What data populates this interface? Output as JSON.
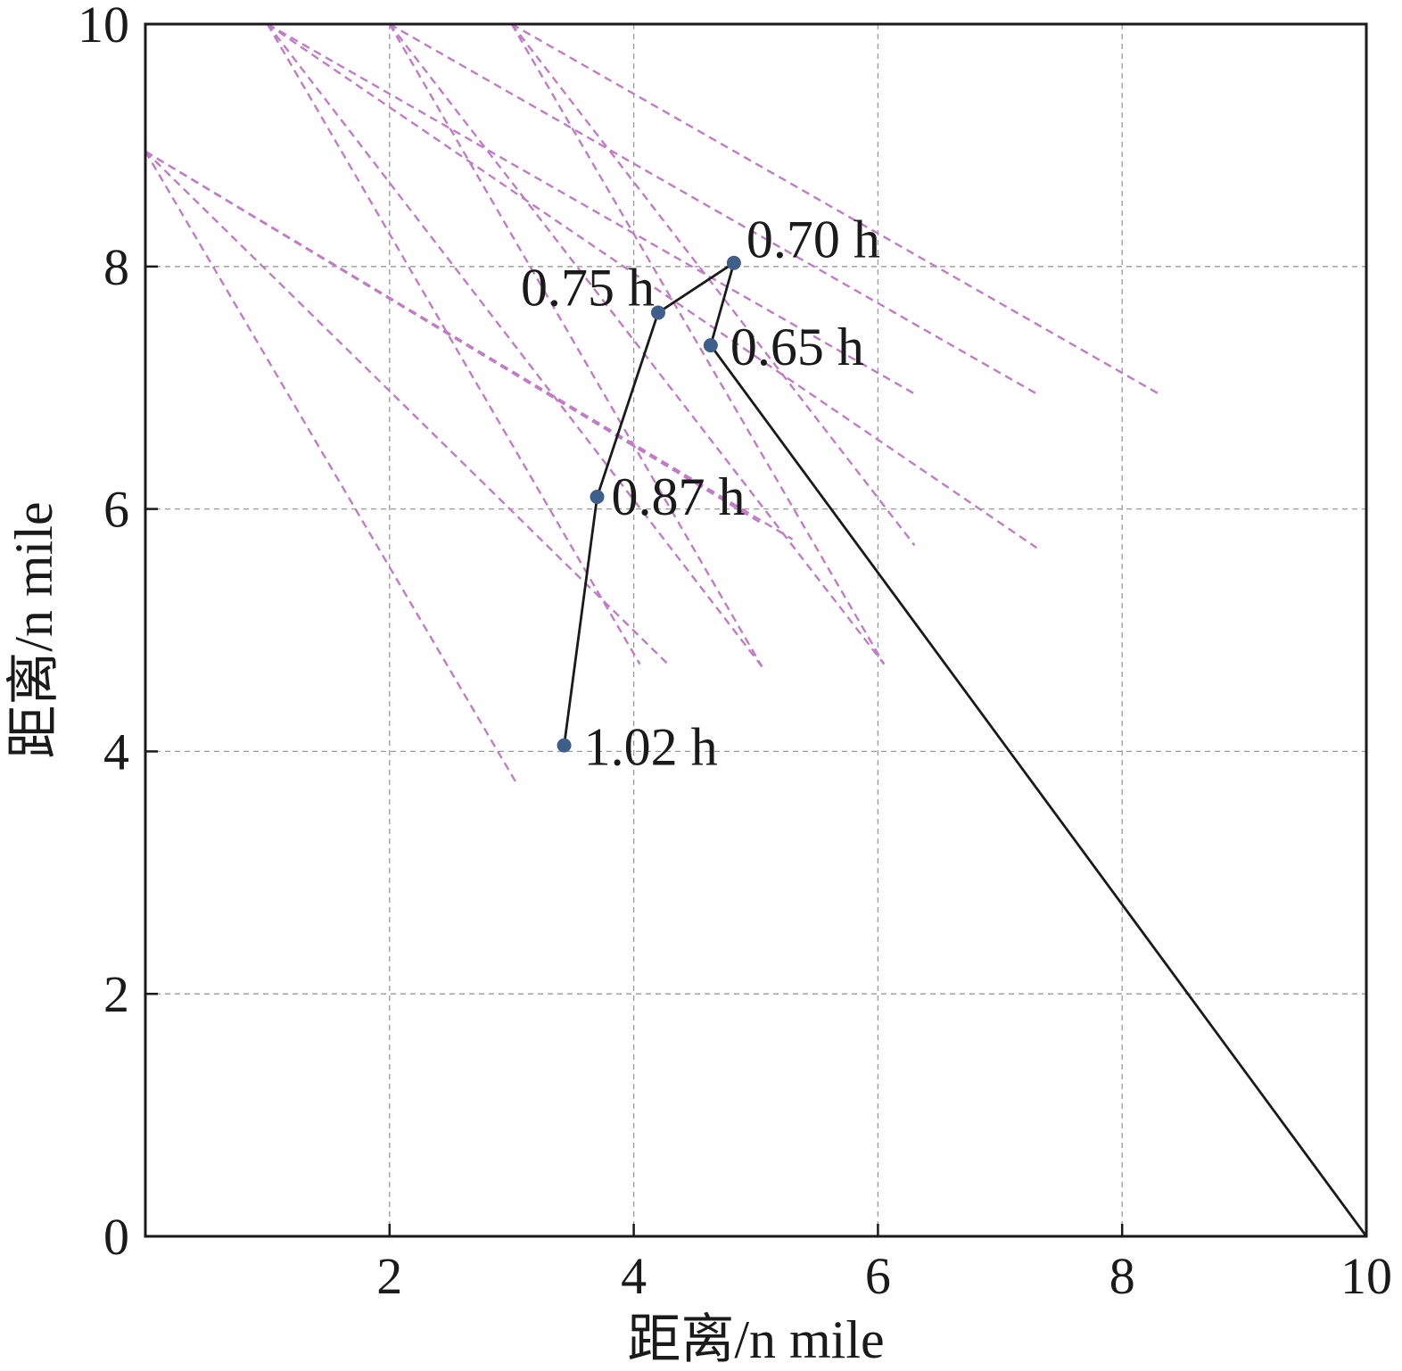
{
  "chart_data": {
    "type": "line",
    "xlabel": "距离/n mile",
    "ylabel": "距离/n mile",
    "xlim": [
      0,
      10
    ],
    "ylim": [
      0,
      10
    ],
    "xticks": [
      2,
      4,
      6,
      8,
      10
    ],
    "xtick_labels": [
      "2",
      "4",
      "6",
      "8",
      "10"
    ],
    "yticks": [
      0,
      2,
      4,
      6,
      8,
      10
    ],
    "ytick_labels": [
      "0",
      "2",
      "4",
      "6",
      "8",
      "10"
    ],
    "grid": true,
    "track": {
      "color": "#1a1a1a",
      "points": [
        {
          "x": 10.0,
          "y": 0.0
        },
        {
          "x": 4.63,
          "y": 7.35
        },
        {
          "x": 4.82,
          "y": 8.03
        },
        {
          "x": 4.2,
          "y": 7.62
        },
        {
          "x": 3.7,
          "y": 6.1
        },
        {
          "x": 3.43,
          "y": 4.05
        }
      ]
    },
    "observations": {
      "marker_color": "#3d5f8a",
      "points": [
        {
          "x": 4.63,
          "y": 7.35,
          "label": "0.65 h"
        },
        {
          "x": 4.82,
          "y": 8.03,
          "label": "0.70 h"
        },
        {
          "x": 4.2,
          "y": 7.62,
          "label": "0.75 h"
        },
        {
          "x": 3.7,
          "y": 6.1,
          "label": "0.87 h"
        },
        {
          "x": 3.43,
          "y": 4.05,
          "label": "1.02 h"
        }
      ]
    },
    "bearing_lines": {
      "color": "#c27bc7",
      "segments": [
        {
          "x1": 0.0,
          "y1": 8.95,
          "x2": 3.05,
          "y2": 3.72
        },
        {
          "x1": 0.0,
          "y1": 8.95,
          "x2": 4.3,
          "y2": 4.7
        },
        {
          "x1": 0.0,
          "y1": 8.95,
          "x2": 5.3,
          "y2": 5.75
        },
        {
          "x1": 1.0,
          "y1": 10.0,
          "x2": 4.05,
          "y2": 4.72
        },
        {
          "x1": 1.0,
          "y1": 10.0,
          "x2": 5.05,
          "y2": 4.7
        },
        {
          "x1": 1.0,
          "y1": 10.0,
          "x2": 6.3,
          "y2": 6.95
        },
        {
          "x1": 2.0,
          "y1": 10.0,
          "x2": 5.05,
          "y2": 4.7
        },
        {
          "x1": 2.0,
          "y1": 10.0,
          "x2": 6.05,
          "y2": 4.72
        },
        {
          "x1": 2.0,
          "y1": 10.0,
          "x2": 7.3,
          "y2": 6.95
        },
        {
          "x1": 3.0,
          "y1": 10.0,
          "x2": 6.05,
          "y2": 4.72
        },
        {
          "x1": 3.0,
          "y1": 10.0,
          "x2": 6.3,
          "y2": 5.7
        },
        {
          "x1": 3.0,
          "y1": 10.0,
          "x2": 8.3,
          "y2": 6.95
        },
        {
          "x1": 0.0,
          "y1": 8.95,
          "x2": 5.05,
          "y2": 5.88
        },
        {
          "x1": 1.0,
          "y1": 10.0,
          "x2": 7.3,
          "y2": 5.68
        }
      ]
    }
  }
}
